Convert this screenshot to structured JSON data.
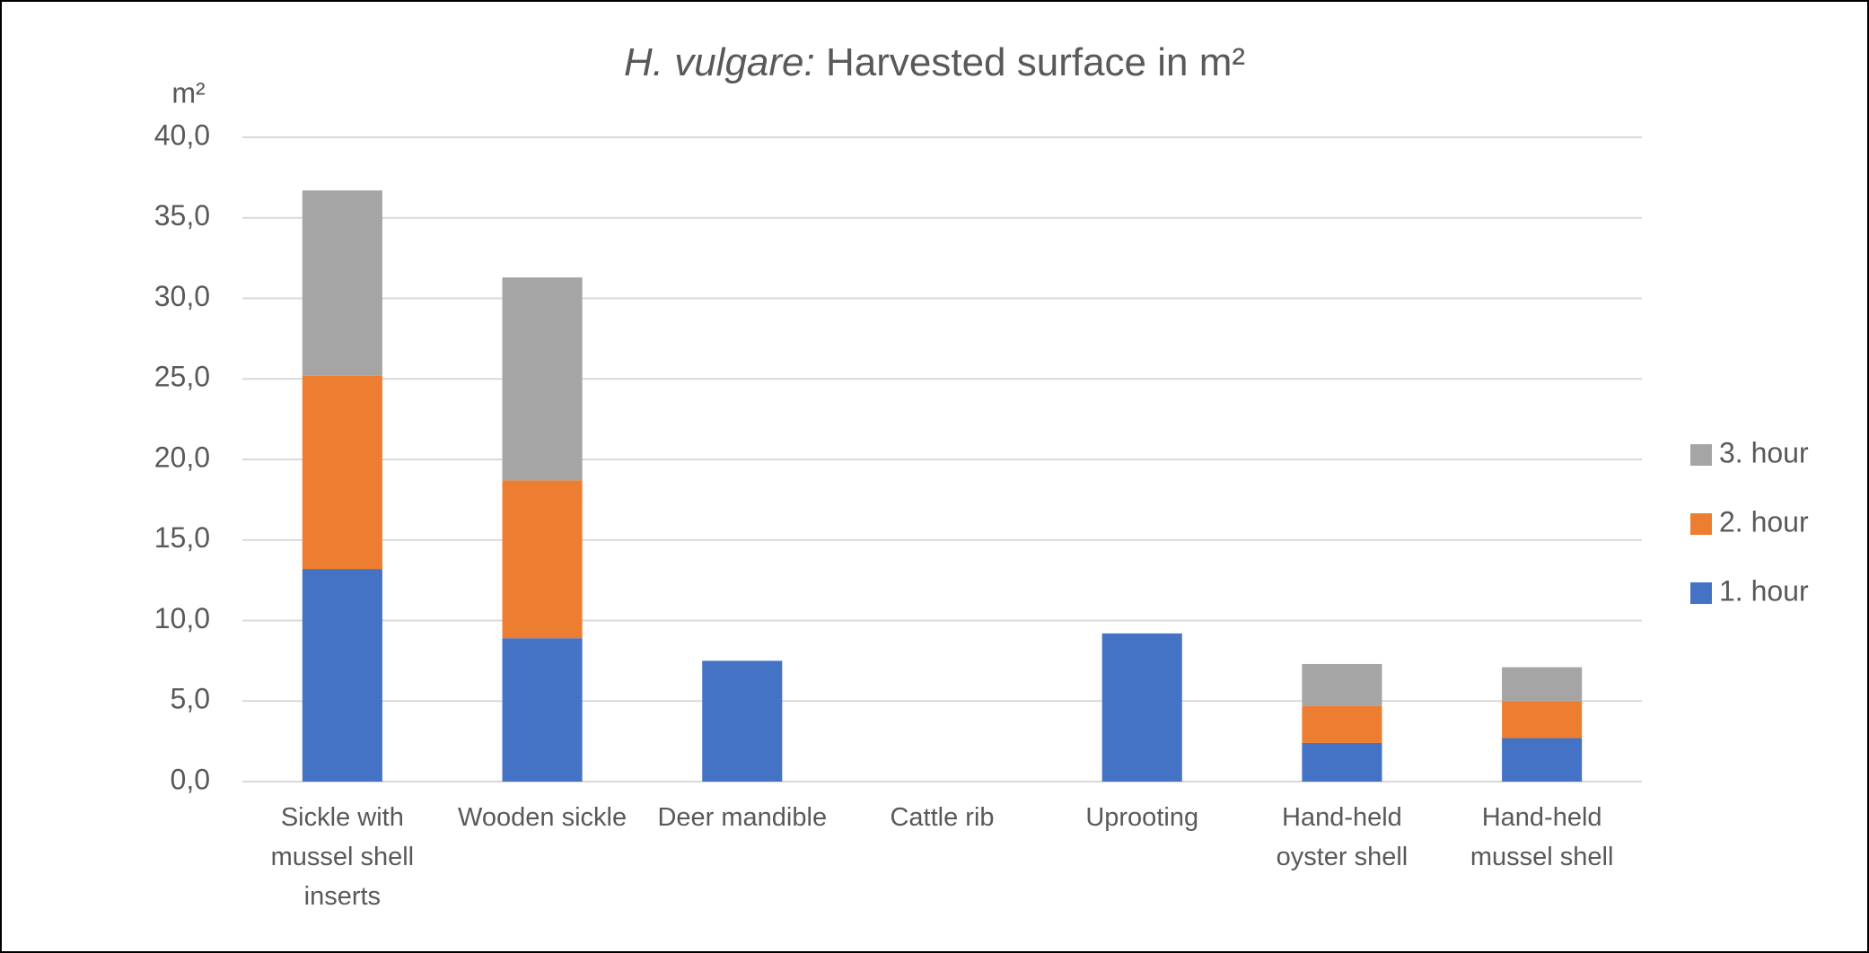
{
  "chart_data": {
    "type": "stacked_bar",
    "title": [
      "H. vulgare:",
      "Harvested surface in m²"
    ],
    "y_label": "m²",
    "categories": [
      "Sickle with mussel shell inserts",
      "Wooden sickle",
      "Deer mandible",
      "Cattle rib",
      "Uprooting",
      "Hand-held oyster shell",
      "Hand-held mussel shell"
    ],
    "series": [
      {
        "name": "1. hour",
        "color": "#4472c4",
        "values": [
          13.2,
          8.9,
          7.5,
          0,
          9.2,
          2.4,
          2.7
        ]
      },
      {
        "name": "2. hour",
        "color": "#ed7d31",
        "values": [
          12.0,
          9.8,
          null,
          null,
          null,
          2.3,
          2.3
        ]
      },
      {
        "name": "3. hour",
        "color": "#a5a5a5",
        "values": [
          11.5,
          12.6,
          null,
          null,
          null,
          2.6,
          2.1
        ]
      }
    ],
    "ylim": [
      0,
      40
    ],
    "yticks": [
      {
        "value": 0,
        "label": "0,0"
      },
      {
        "value": 5,
        "label": "5,0"
      },
      {
        "value": 10,
        "label": "10,0"
      },
      {
        "value": 15,
        "label": "15,0"
      },
      {
        "value": 20,
        "label": "20,0"
      },
      {
        "value": 25,
        "label": "25,0"
      },
      {
        "value": 30,
        "label": "30,0"
      },
      {
        "value": 35,
        "label": "35,0"
      },
      {
        "value": 40,
        "label": "40,0"
      }
    ],
    "grid": true,
    "legend": "right"
  }
}
